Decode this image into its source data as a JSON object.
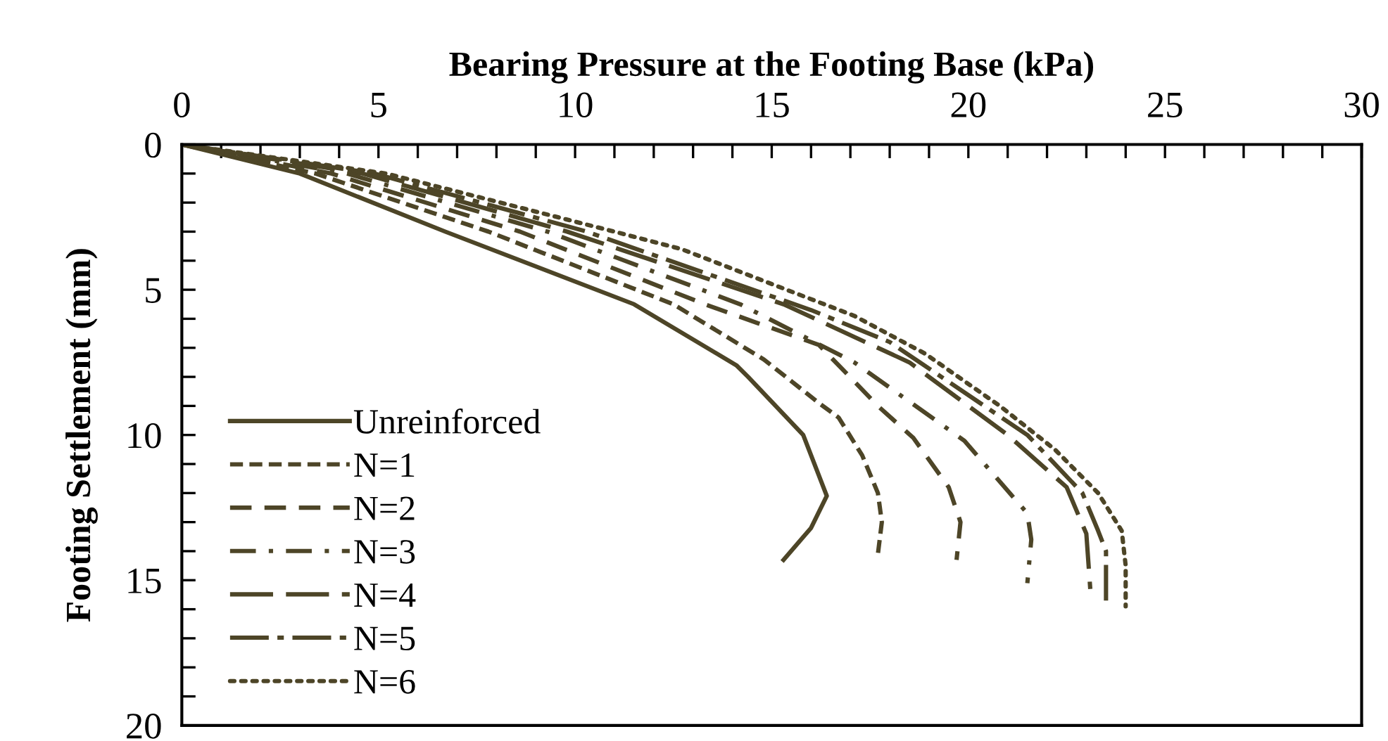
{
  "chart_data": {
    "type": "line",
    "xlabel": "Bearing Pressure at the Footing Base (kPa)",
    "ylabel": "Footing Settlement (mm)",
    "xlim": [
      0,
      30
    ],
    "ylim": [
      20,
      0
    ],
    "xticks": [
      0,
      {
        "value": 1,
        "label": null
      },
      {
        "value": 2,
        "label": null
      },
      {
        "value": 3,
        "label": null
      },
      {
        "value": 4,
        "label": null
      },
      5,
      {
        "value": 6,
        "label": null
      },
      {
        "value": 7,
        "label": null
      },
      {
        "value": 8,
        "label": null
      },
      {
        "value": 9,
        "label": null
      },
      10,
      {
        "value": 11,
        "label": null
      },
      {
        "value": 12,
        "label": null
      },
      {
        "value": 13,
        "label": null
      },
      {
        "value": 14,
        "label": null
      },
      15,
      {
        "value": 16,
        "label": null
      },
      {
        "value": 17,
        "label": null
      },
      {
        "value": 18,
        "label": null
      },
      {
        "value": 19,
        "label": null
      },
      20,
      {
        "value": 21,
        "label": null
      },
      {
        "value": 22,
        "label": null
      },
      {
        "value": 23,
        "label": null
      },
      {
        "value": 24,
        "label": null
      },
      25,
      {
        "value": 26,
        "label": null
      },
      {
        "value": 27,
        "label": null
      },
      {
        "value": 28,
        "label": null
      },
      {
        "value": 29,
        "label": null
      },
      30
    ],
    "yticks": [
      0,
      {
        "value": 1,
        "label": null
      },
      {
        "value": 2,
        "label": null
      },
      {
        "value": 3,
        "label": null
      },
      {
        "value": 4,
        "label": null
      },
      5,
      {
        "value": 6,
        "label": null
      },
      {
        "value": 7,
        "label": null
      },
      {
        "value": 8,
        "label": null
      },
      {
        "value": 9,
        "label": null
      },
      10,
      {
        "value": 11,
        "label": null
      },
      {
        "value": 12,
        "label": null
      },
      {
        "value": 13,
        "label": null
      },
      {
        "value": 14,
        "label": null
      },
      15,
      {
        "value": 16,
        "label": null
      },
      {
        "value": 17,
        "label": null
      },
      {
        "value": 18,
        "label": null
      },
      {
        "value": 19,
        "label": null
      },
      20
    ],
    "grid": false,
    "legend": "bottom left",
    "marker": "none",
    "series": [
      {
        "name": "Unreinforced",
        "color": "#4d4527",
        "line_style": "solid",
        "x": [
          0,
          3.0,
          6.7,
          11.5,
          14.1,
          14.4,
          15.8,
          16.4,
          16.0,
          15.3
        ],
        "values": [
          0,
          1,
          3,
          5.5,
          7.6,
          8.0,
          10.0,
          12.1,
          13.2,
          14.3
        ]
      },
      {
        "name": "N=1",
        "color": "#4d4527",
        "line_style": "shortdash",
        "x": [
          0,
          3.4,
          7.8,
          12.5,
          14.8,
          16.2,
          16.7,
          17.3,
          17.7,
          17.8,
          17.7
        ],
        "values": [
          0,
          1,
          3,
          5.5,
          7.4,
          8.9,
          9.4,
          10.7,
          12.0,
          13.0,
          14.1
        ]
      },
      {
        "name": "N=2",
        "color": "#4d4527",
        "line_style": "dashed",
        "x": [
          0,
          3.8,
          8.6,
          13.3,
          16.2,
          17.7,
          18.6,
          19.5,
          19.8,
          19.7
        ],
        "values": [
          0,
          1,
          3,
          5.5,
          6.9,
          9.0,
          10.1,
          11.8,
          13.0,
          14.3
        ]
      },
      {
        "name": "N=3",
        "color": "#4d4527",
        "line_style": "dashdot",
        "x": [
          0,
          4.2,
          9.3,
          14.2,
          17.1,
          19.9,
          21.5,
          21.6,
          21.5
        ],
        "values": [
          0,
          1,
          3,
          5.5,
          7.5,
          10.2,
          12.7,
          13.6,
          15.1
        ]
      },
      {
        "name": "N=4",
        "color": "#4d4527",
        "line_style": "longdash",
        "x": [
          0,
          4.6,
          9.8,
          15.3,
          18.5,
          21.0,
          22.5,
          23.0,
          23.1
        ],
        "values": [
          0,
          1,
          3,
          5.5,
          7.5,
          10.0,
          11.8,
          13.4,
          15.3
        ]
      },
      {
        "name": "N=5",
        "color": "#4d4527",
        "line_style": "longdashdot",
        "x": [
          0,
          4.9,
          10.3,
          16.0,
          18.0,
          21.5,
          22.9,
          23.3,
          23.5,
          23.5
        ],
        "values": [
          0,
          1,
          3,
          5.7,
          6.8,
          10.0,
          12.0,
          13.3,
          14.0,
          15.7
        ]
      },
      {
        "name": "N=6",
        "color": "#4d4527",
        "line_style": "dotted",
        "x": [
          0,
          5.2,
          11.0,
          12.7,
          17.1,
          18.9,
          20.8,
          22.2,
          23.3,
          23.9,
          24.0,
          24.0
        ],
        "values": [
          0,
          1,
          3,
          3.6,
          5.9,
          7.2,
          9.0,
          10.5,
          12.0,
          13.3,
          14.5,
          15.9
        ]
      }
    ]
  }
}
